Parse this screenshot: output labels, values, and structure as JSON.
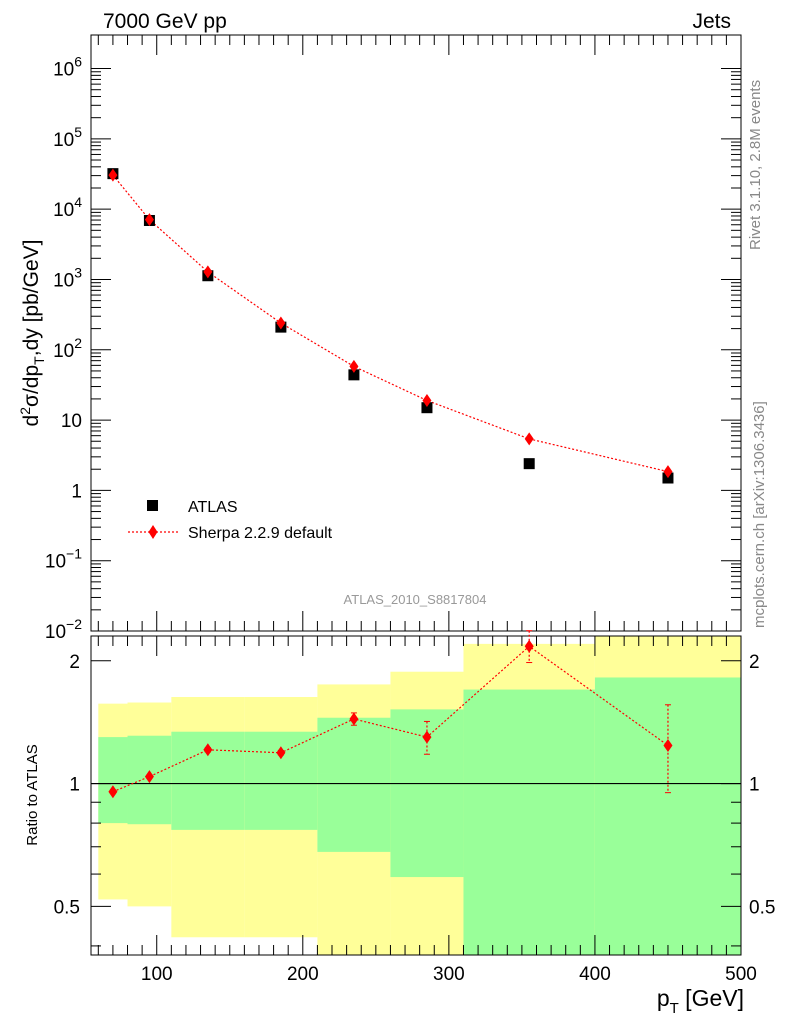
{
  "header": {
    "left": "7000 GeV pp",
    "right": "Jets"
  },
  "side_labels": {
    "rivet": "Rivet 3.1.10,  2.8M events",
    "mcplots": "mcplots.cern.ch [arXiv:1306.3436]"
  },
  "analysis_label": "ATLAS_2010_S8817804",
  "chart_data": [
    {
      "type": "scatter",
      "ylabel": "d²σ/dpT,dy [pb/GeV]",
      "xlim": [
        55,
        500
      ],
      "ylim": [
        0.01,
        3000000
      ],
      "yscale": "log",
      "yticks": [
        {
          "v": 0.01,
          "b": "10",
          "e": "−2"
        },
        {
          "v": 0.1,
          "b": "10",
          "e": "−1"
        },
        {
          "v": 1,
          "b": "1",
          "e": ""
        },
        {
          "v": 10,
          "b": "10",
          "e": ""
        },
        {
          "v": 100,
          "b": "10",
          "e": "2"
        },
        {
          "v": 1000,
          "b": "10",
          "e": "3"
        },
        {
          "v": 10000,
          "b": "10",
          "e": "4"
        },
        {
          "v": 100000,
          "b": "10",
          "e": "5"
        },
        {
          "v": 1000000,
          "b": "10",
          "e": "6"
        }
      ],
      "legend": {
        "placement": "bottom-left",
        "entries": [
          "ATLAS",
          "Sherpa 2.2.9 default"
        ]
      },
      "series": [
        {
          "name": "ATLAS",
          "color": "#000000",
          "x": [
            70,
            95,
            135,
            185,
            235,
            285,
            355,
            450
          ],
          "y": [
            32000,
            6900,
            1130,
            210,
            44,
            15,
            2.4,
            1.5
          ]
        },
        {
          "name": "Sherpa 2.2.9 default",
          "color": "#ff0000",
          "x": [
            70,
            95,
            135,
            185,
            235,
            285,
            355,
            450
          ],
          "y": [
            30500,
            7100,
            1280,
            240,
            58,
            19,
            5.4,
            1.85
          ]
        }
      ]
    },
    {
      "type": "scatter",
      "ylabel": "Ratio to ATLAS",
      "xlabel": "pT [GeV]",
      "xlim": [
        55,
        500
      ],
      "ylim": [
        0.38,
        2.3
      ],
      "yscale": "log",
      "yticks": [
        0.5,
        1,
        2
      ],
      "xticks": [
        100,
        200,
        300,
        400,
        500
      ],
      "reference": 1,
      "bands": [
        {
          "x0": 60,
          "x1": 80,
          "y_lo": 0.52,
          "y_hi": 1.57,
          "stat_lo": 0.8,
          "stat_hi": 1.3
        },
        {
          "x0": 80,
          "x1": 110,
          "y_lo": 0.5,
          "y_hi": 1.58,
          "stat_lo": 0.795,
          "stat_hi": 1.31
        },
        {
          "x0": 110,
          "x1": 160,
          "y_lo": 0.42,
          "y_hi": 1.63,
          "stat_lo": 0.77,
          "stat_hi": 1.34
        },
        {
          "x0": 160,
          "x1": 210,
          "y_lo": 0.42,
          "y_hi": 1.63,
          "stat_lo": 0.77,
          "stat_hi": 1.34
        },
        {
          "x0": 210,
          "x1": 260,
          "y_lo": 0.38,
          "y_hi": 1.75,
          "stat_lo": 0.68,
          "stat_hi": 1.45
        },
        {
          "x0": 260,
          "x1": 310,
          "y_lo": 0.38,
          "y_hi": 1.88,
          "stat_lo": 0.59,
          "stat_hi": 1.52
        },
        {
          "x0": 310,
          "x1": 400,
          "y_lo": 0.38,
          "y_hi": 2.2,
          "stat_lo": 0.38,
          "stat_hi": 1.7
        },
        {
          "x0": 400,
          "x1": 500,
          "y_lo": 0.38,
          "y_hi": 2.3,
          "stat_lo": 0.38,
          "stat_hi": 1.82
        }
      ],
      "band_colors": {
        "total": "#ffff99",
        "stat": "#99ff99"
      },
      "series": [
        {
          "name": "Sherpa 2.2.9 default",
          "color": "#ff0000",
          "x": [
            70,
            95,
            135,
            185,
            235,
            285,
            355,
            450
          ],
          "y": [
            0.955,
            1.04,
            1.21,
            1.19,
            1.44,
            1.3,
            2.17,
            1.24
          ],
          "err_lo": [
            0.01,
            0.01,
            0.015,
            0.015,
            0.05,
            0.12,
            0.19,
            0.29
          ],
          "err_hi": [
            0.01,
            0.01,
            0.015,
            0.015,
            0.05,
            0.12,
            0.2,
            0.32
          ]
        }
      ]
    }
  ]
}
